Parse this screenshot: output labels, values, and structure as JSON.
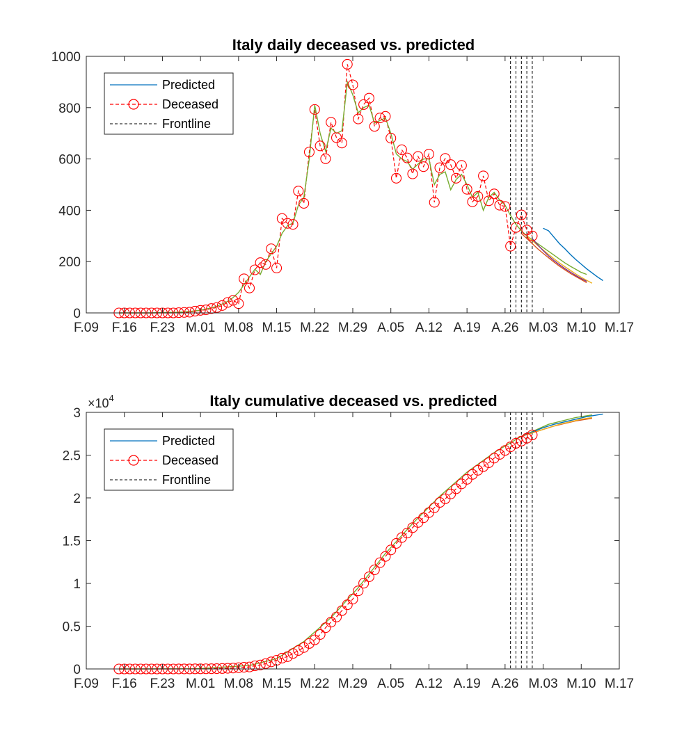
{
  "chart_data": [
    {
      "type": "line",
      "title": "Italy daily deceased vs. predicted",
      "xlabel": "",
      "ylabel": "",
      "ylim": [
        0,
        1000
      ],
      "yticks": [
        0,
        200,
        400,
        600,
        800,
        1000
      ],
      "ytick_labels": [
        "0",
        "200",
        "400",
        "600",
        "800",
        "1000"
      ],
      "xlim": [
        0,
        98
      ],
      "xticks": [
        0,
        7,
        14,
        21,
        28,
        35,
        42,
        49,
        56,
        63,
        70,
        77,
        84,
        91,
        98
      ],
      "xtick_labels": [
        "F.09",
        "F.16",
        "F.23",
        "M.01",
        "M.08",
        "M.15",
        "M.22",
        "M.29",
        "A.05",
        "A.12",
        "A.19",
        "A.26",
        "M.03",
        "M.10",
        "M.17"
      ],
      "grid": false,
      "legend_position": "top-left",
      "legend": [
        {
          "label": "Predicted",
          "style": "line",
          "color": "#0072BD"
        },
        {
          "label": "Deceased",
          "style": "dashed-circle",
          "color": "#FF0000"
        },
        {
          "label": "Frontline",
          "style": "dashed",
          "color": "#000000"
        }
      ],
      "frontlines_x": [
        78,
        79,
        80,
        81,
        82
      ],
      "deceased": {
        "x": [
          6,
          7,
          8,
          9,
          10,
          11,
          12,
          13,
          14,
          15,
          16,
          17,
          18,
          19,
          20,
          21,
          22,
          23,
          24,
          25,
          26,
          27,
          28,
          29,
          30,
          31,
          32,
          33,
          34,
          35,
          36,
          37,
          38,
          39,
          40,
          41,
          42,
          43,
          44,
          45,
          46,
          47,
          48,
          49,
          50,
          51,
          52,
          53,
          54,
          55,
          56,
          57,
          58,
          59,
          60,
          61,
          62,
          63,
          64,
          65,
          66,
          67,
          68,
          69,
          70,
          71,
          72,
          73,
          74,
          75,
          76,
          77,
          78,
          79,
          80,
          81,
          82
        ],
        "y": [
          0,
          0,
          0,
          0,
          0,
          0,
          0,
          0,
          0,
          0,
          0,
          1,
          2,
          3,
          7,
          10,
          12,
          17,
          21,
          29,
          41,
          49,
          36,
          133,
          97,
          168,
          196,
          189,
          250,
          175,
          368,
          349,
          345,
          475,
          427,
          627,
          793,
          651,
          601,
          743,
          683,
          662,
          969,
          889,
          756,
          812,
          837,
          727,
          760,
          766,
          681,
          525,
          636,
          604,
          542,
          610,
          570,
          619,
          431,
          566,
          602,
          578,
          525,
          575,
          482,
          433,
          454,
          534,
          437,
          464,
          420,
          415,
          260,
          333,
          382,
          323,
          300
        ]
      },
      "series": [
        {
          "name": "",
          "color": "#77AC30",
          "x": [
            6,
            7,
            8,
            9,
            10,
            11,
            12,
            13,
            14,
            15,
            16,
            17,
            18,
            19,
            20,
            21,
            22,
            23,
            24,
            25,
            26,
            27,
            28,
            29,
            30,
            31,
            32,
            33,
            34,
            35,
            36,
            37,
            38,
            39,
            40,
            41,
            42,
            43,
            44,
            45,
            46,
            47,
            48,
            49,
            50,
            51,
            52,
            53,
            54,
            55,
            56,
            57,
            58,
            59,
            60,
            61,
            62,
            63,
            64,
            65,
            66,
            67,
            68,
            69,
            70,
            71,
            72,
            73,
            74,
            75,
            76,
            77,
            78,
            79,
            80,
            81,
            82,
            83,
            84,
            85,
            86,
            87,
            88,
            89,
            90,
            91,
            92
          ],
          "y": [
            0,
            0,
            0,
            0,
            0,
            0,
            0,
            1,
            1,
            2,
            2,
            3,
            4,
            6,
            8,
            11,
            15,
            20,
            26,
            35,
            45,
            60,
            80,
            110,
            140,
            170,
            150,
            200,
            230,
            260,
            310,
            340,
            350,
            420,
            450,
            600,
            810,
            700,
            630,
            720,
            700,
            710,
            900,
            850,
            780,
            800,
            810,
            740,
            750,
            760,
            700,
            620,
            600,
            590,
            560,
            580,
            600,
            600,
            500,
            540,
            550,
            480,
            520,
            540,
            500,
            450,
            470,
            400,
            450,
            470,
            440,
            420,
            380,
            345,
            320,
            300,
            285,
            270,
            255,
            240,
            225,
            210,
            195,
            182,
            170,
            158,
            150
          ]
        },
        {
          "name": "",
          "color": "#0072BD",
          "x": [
            84,
            85,
            86,
            87,
            88,
            89,
            90,
            91,
            92,
            93,
            94,
            95
          ],
          "y": [
            330,
            320,
            295,
            270,
            250,
            228,
            208,
            190,
            172,
            156,
            140,
            126
          ],
          "x_comment": ""
        },
        {
          "name": "",
          "color": "#D95319",
          "x": [
            80,
            81,
            82,
            83,
            84,
            85,
            86,
            87,
            88,
            89,
            90,
            91,
            92
          ],
          "y": [
            310,
            290,
            270,
            250,
            232,
            215,
            198,
            182,
            168,
            154,
            142,
            130,
            118
          ]
        },
        {
          "name": "",
          "color": "#EDB120",
          "x": [
            81,
            82,
            83,
            84,
            85,
            86,
            87,
            88,
            89,
            90,
            91,
            92,
            93
          ],
          "y": [
            300,
            282,
            263,
            245,
            228,
            211,
            195,
            180,
            166,
            152,
            139,
            127,
            116
          ]
        },
        {
          "name": "",
          "color": "#7E2F8E",
          "x": [
            82,
            83,
            84,
            85,
            86,
            87,
            88,
            89,
            90,
            91,
            92
          ],
          "y": [
            290,
            265,
            243,
            222,
            204,
            188,
            173,
            159,
            146,
            134,
            123
          ]
        }
      ]
    },
    {
      "type": "line",
      "title": "Italy cumulative deceased vs. predicted",
      "xlabel": "",
      "ylabel": "",
      "y_multiplier_label": "×10",
      "y_multiplier_exponent": "4",
      "ylim": [
        0,
        3
      ],
      "yticks": [
        0,
        0.5,
        1,
        1.5,
        2,
        2.5,
        3
      ],
      "ytick_labels": [
        "0",
        "0.5",
        "1",
        "1.5",
        "2",
        "2.5",
        "3"
      ],
      "xlim": [
        0,
        98
      ],
      "xticks": [
        0,
        7,
        14,
        21,
        28,
        35,
        42,
        49,
        56,
        63,
        70,
        77,
        84,
        91,
        98
      ],
      "xtick_labels": [
        "F.09",
        "F.16",
        "F.23",
        "M.01",
        "M.08",
        "M.15",
        "M.22",
        "M.29",
        "A.05",
        "A.12",
        "A.19",
        "A.26",
        "M.03",
        "M.10",
        "M.17"
      ],
      "grid": false,
      "legend_position": "top-left",
      "legend": [
        {
          "label": "Predicted",
          "style": "line",
          "color": "#0072BD"
        },
        {
          "label": "Deceased",
          "style": "dashed-circle",
          "color": "#FF0000"
        },
        {
          "label": "Frontline",
          "style": "dashed",
          "color": "#000000"
        }
      ],
      "frontlines_x": [
        78,
        79,
        80,
        81,
        82
      ],
      "deceased": {
        "x": [
          6,
          7,
          8,
          9,
          10,
          11,
          12,
          13,
          14,
          15,
          16,
          17,
          18,
          19,
          20,
          21,
          22,
          23,
          24,
          25,
          26,
          27,
          28,
          29,
          30,
          31,
          32,
          33,
          34,
          35,
          36,
          37,
          38,
          39,
          40,
          41,
          42,
          43,
          44,
          45,
          46,
          47,
          48,
          49,
          50,
          51,
          52,
          53,
          54,
          55,
          56,
          57,
          58,
          59,
          60,
          61,
          62,
          63,
          64,
          65,
          66,
          67,
          68,
          69,
          70,
          71,
          72,
          73,
          74,
          75,
          76,
          77,
          78,
          79,
          80,
          81,
          82
        ],
        "y": [
          0,
          0,
          0,
          0,
          0,
          0,
          0,
          0,
          0,
          0,
          0.0001,
          0.0003,
          0.0005,
          0.0007,
          0.0012,
          0.0017,
          0.0021,
          0.0029,
          0.0034,
          0.0052,
          0.0079,
          0.0107,
          0.0148,
          0.0197,
          0.0233,
          0.0366,
          0.0463,
          0.0631,
          0.0827,
          0.1016,
          0.1266,
          0.1441,
          0.1809,
          0.2158,
          0.2503,
          0.2978,
          0.3405,
          0.4032,
          0.4825,
          0.5476,
          0.6077,
          0.682,
          0.7503,
          0.8165,
          0.9134,
          1.0023,
          1.0779,
          1.1591,
          1.2428,
          1.3155,
          1.3915,
          1.4681,
          1.5362,
          1.5887,
          1.6523,
          1.7127,
          1.7669,
          1.8279,
          1.8849,
          1.9468,
          1.9899,
          2.0465,
          2.1067,
          2.1645,
          2.217,
          2.2745,
          2.3227,
          2.366,
          2.4114,
          2.4648,
          2.5085,
          2.5549,
          2.5969,
          2.6384,
          2.6644,
          2.6977,
          2.7359
        ]
      },
      "series": [
        {
          "name": "",
          "color": "#77AC30",
          "x": [
            6,
            20,
            30,
            35,
            40,
            45,
            50,
            55,
            60,
            65,
            70,
            75,
            80,
            85,
            90,
            93
          ],
          "y": [
            0,
            0.0015,
            0.04,
            0.12,
            0.32,
            0.6,
            0.95,
            1.35,
            1.7,
            2.02,
            2.3,
            2.53,
            2.72,
            2.86,
            2.94,
            2.97
          ]
        },
        {
          "name": "",
          "color": "#0072BD",
          "x": [
            80,
            82,
            84,
            86,
            88,
            90,
            92,
            94,
            95
          ],
          "y": [
            2.72,
            2.77,
            2.82,
            2.86,
            2.89,
            2.92,
            2.95,
            2.97,
            2.98
          ]
        },
        {
          "name": "",
          "color": "#D95319",
          "x": [
            80,
            82,
            84,
            86,
            88,
            90,
            92,
            93
          ],
          "y": [
            2.72,
            2.76,
            2.8,
            2.84,
            2.87,
            2.9,
            2.92,
            2.93
          ]
        },
        {
          "name": "",
          "color": "#EDB120",
          "x": [
            81,
            83,
            85,
            87,
            89,
            91,
            93
          ],
          "y": [
            2.74,
            2.78,
            2.82,
            2.86,
            2.89,
            2.92,
            2.94
          ]
        }
      ]
    }
  ]
}
